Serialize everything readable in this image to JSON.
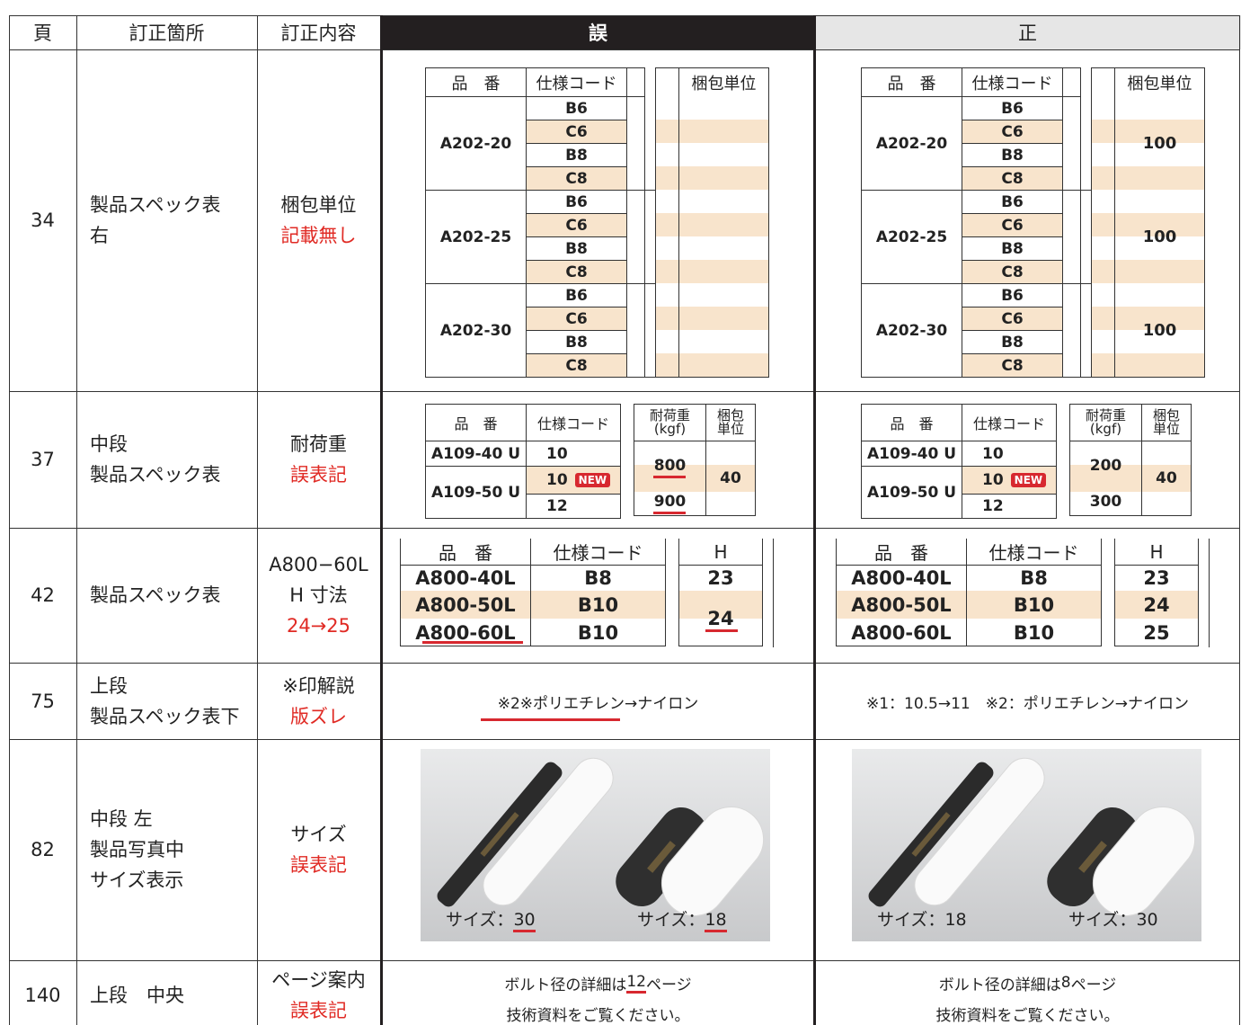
{
  "header": {
    "page": "頁",
    "location": "訂正箇所",
    "content": "訂正内容",
    "wrong": "誤",
    "correct": "正"
  },
  "rows": [
    {
      "page": "34",
      "location": [
        "製品スペック表",
        "右"
      ],
      "content": [
        "梱包単位"
      ],
      "content_red": [
        "記載無し"
      ],
      "wrong": {
        "headers": [
          "品　番",
          "仕様コード",
          "梱包単位"
        ],
        "groups": [
          {
            "item": "A202-20",
            "codes": [
              "B6",
              "C6",
              "B8",
              "C8"
            ]
          },
          {
            "item": "A202-25",
            "codes": [
              "B6",
              "C6",
              "B8",
              "C8"
            ]
          },
          {
            "item": "A202-30",
            "codes": [
              "B6",
              "C6",
              "B8",
              "C8"
            ]
          }
        ]
      },
      "correct": {
        "headers": [
          "品　番",
          "仕様コード",
          "梱包単位"
        ],
        "groups": [
          {
            "item": "A202-20",
            "codes": [
              "B6",
              "C6",
              "B8",
              "C8"
            ],
            "unit": "100"
          },
          {
            "item": "A202-25",
            "codes": [
              "B6",
              "C6",
              "B8",
              "C8"
            ],
            "unit": "100"
          },
          {
            "item": "A202-30",
            "codes": [
              "B6",
              "C6",
              "B8",
              "C8"
            ],
            "unit": "100"
          }
        ]
      }
    },
    {
      "page": "37",
      "location": [
        "中段",
        "製品スペック表"
      ],
      "content": [
        "耐荷重"
      ],
      "content_red": [
        "誤表記"
      ],
      "wrong": {
        "headers": {
          "item": "品　番",
          "code": "仕様コード",
          "load": [
            "耐荷重",
            "(kgf)"
          ],
          "pack": [
            "梱包",
            "単位"
          ]
        },
        "rows": [
          {
            "item": "A109-40 U",
            "codes": [
              "10"
            ]
          },
          {
            "item": "A109-50 U",
            "codes": [
              "10",
              "12"
            ],
            "badge": "NEW"
          }
        ],
        "loads": [
          "800",
          "900"
        ],
        "pack": "40"
      },
      "correct": {
        "headers": {
          "item": "品　番",
          "code": "仕様コード",
          "load": [
            "耐荷重",
            "(kgf)"
          ],
          "pack": [
            "梱包",
            "単位"
          ]
        },
        "rows": [
          {
            "item": "A109-40 U",
            "codes": [
              "10"
            ]
          },
          {
            "item": "A109-50 U",
            "codes": [
              "10",
              "12"
            ],
            "badge": "NEW"
          }
        ],
        "loads": [
          "200",
          "300"
        ],
        "pack": "40"
      }
    },
    {
      "page": "42",
      "location": [
        "製品スペック表"
      ],
      "content": [
        "A800−60L",
        "H 寸法"
      ],
      "content_red": [
        "24→25"
      ],
      "wrong": {
        "headers": [
          "品　番",
          "仕様コード",
          "H"
        ],
        "rows": [
          {
            "item": "A800-40L",
            "code": "B8"
          },
          {
            "item": "A800-50L",
            "code": "B10"
          },
          {
            "item": "A800-60L",
            "code": "B10"
          }
        ],
        "h": [
          "23",
          "24"
        ]
      },
      "correct": {
        "headers": [
          "品　番",
          "仕様コード",
          "H"
        ],
        "rows": [
          {
            "item": "A800-40L",
            "code": "B8"
          },
          {
            "item": "A800-50L",
            "code": "B10"
          },
          {
            "item": "A800-60L",
            "code": "B10"
          }
        ],
        "h": [
          "23",
          "24",
          "25"
        ]
      }
    },
    {
      "page": "75",
      "location": [
        "上段",
        "製品スペック表下"
      ],
      "content": [
        "※印解説"
      ],
      "content_red": [
        "版ズレ"
      ],
      "wrong": {
        "text": "※2※ポリエチレン→ナイロン"
      },
      "correct": {
        "text": "※1：10.5→11　※2：ポリエチレン→ナイロン"
      }
    },
    {
      "page": "82",
      "location": [
        "中段 左",
        "製品写真中",
        "サイズ表示"
      ],
      "content": [
        "サイズ"
      ],
      "content_red": [
        "誤表記"
      ],
      "wrong": {
        "labels": [
          {
            "prefix": "サイズ：",
            "size": "30"
          },
          {
            "prefix": "サイズ：",
            "size": "18"
          }
        ]
      },
      "correct": {
        "labels": [
          {
            "prefix": "サイズ：",
            "size": "18"
          },
          {
            "prefix": "サイズ：",
            "size": "30"
          }
        ]
      }
    },
    {
      "page": "140",
      "location": [
        "上段　中央"
      ],
      "content": [
        "ページ案内"
      ],
      "content_red": [
        "誤表記"
      ],
      "wrong": {
        "line1": {
          "pre": "ボルト径の詳細は",
          "num": "12",
          "post": "ページ"
        },
        "line2": "技術資料をご覧ください。"
      },
      "correct": {
        "line1": {
          "pre": "ボルト径の詳細は ",
          "num": "8",
          "post": "ページ"
        },
        "line2": "技術資料をご覧ください。"
      }
    }
  ]
}
